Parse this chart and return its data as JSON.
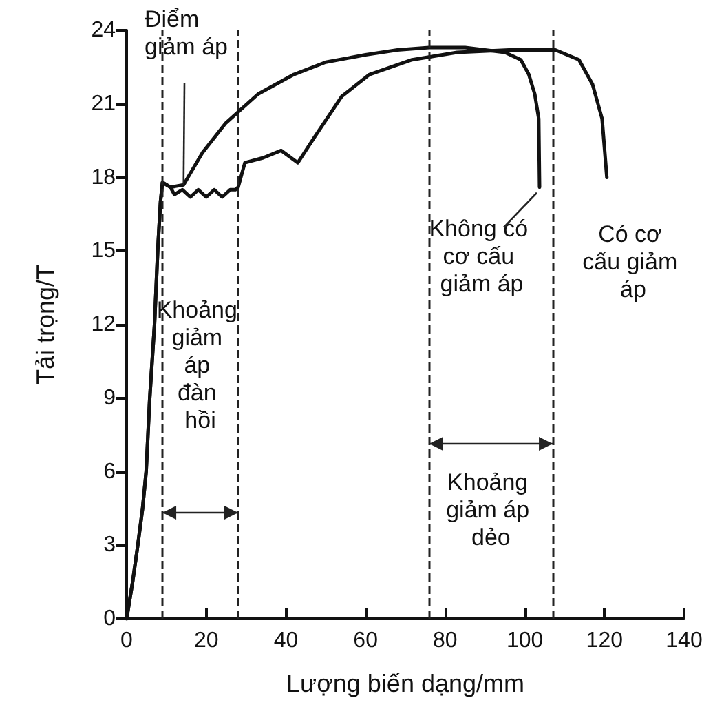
{
  "chart_data": {
    "type": "line",
    "xlabel": "Lượng biến dạng/mm",
    "ylabel": "Tải trọng/T",
    "xlim": [
      0,
      140
    ],
    "xticks": [
      0,
      20,
      40,
      60,
      80,
      100,
      120,
      140
    ],
    "ylim": [
      0,
      24
    ],
    "yticks": [
      0,
      3,
      6,
      9,
      12,
      15,
      18,
      21,
      24
    ],
    "grid": false,
    "legend": false,
    "marker": "none",
    "line_style": "solid",
    "series": [
      {
        "name": "Không có cơ cấu giảm áp",
        "color": "#111111",
        "x": [
          0,
          1.5,
          2.8,
          4,
          4.9,
          5.8,
          7,
          7.8,
          8.5,
          9,
          11,
          14.3,
          19,
          24.8,
          33,
          42,
          50,
          60,
          68,
          76,
          85,
          95,
          99,
          101,
          102.5,
          103.5,
          103.7
        ],
        "values": [
          0,
          1.5,
          3,
          4.5,
          6,
          9,
          12,
          15,
          17,
          17.8,
          17.6,
          17.7,
          19,
          20.2,
          21.4,
          22.2,
          22.7,
          23,
          23.2,
          23.3,
          23.3,
          23.1,
          22.8,
          22.2,
          21.4,
          20.4,
          17.6
        ]
      },
      {
        "name": "Có cơ cấu giảm áp",
        "color": "#111111",
        "x": [
          0,
          1.5,
          2.8,
          4,
          4.9,
          5.8,
          7,
          7.8,
          8.5,
          9,
          11,
          12,
          14,
          16,
          18,
          20,
          22,
          24,
          26,
          27.3,
          28,
          29.7,
          34.3,
          38.8,
          43,
          47,
          54,
          61,
          71.7,
          83,
          96,
          107.7,
          113.6,
          117,
          119.4,
          120.6
        ],
        "values": [
          0,
          1.5,
          3,
          4.5,
          6,
          9,
          12,
          15,
          17,
          17.8,
          17.6,
          17.3,
          17.5,
          17.2,
          17.5,
          17.2,
          17.5,
          17.2,
          17.5,
          17.5,
          17.6,
          18.6,
          18.8,
          19.1,
          18.6,
          19.6,
          21.3,
          22.2,
          22.8,
          23.1,
          23.2,
          23.2,
          22.8,
          21.8,
          20.4,
          18
        ]
      }
    ],
    "ref_lines": [
      {
        "axis": "x",
        "value": 9,
        "line_style": "dashed"
      },
      {
        "axis": "x",
        "value": 28,
        "line_style": "dashed"
      },
      {
        "axis": "x",
        "value": 76,
        "line_style": "dashed"
      },
      {
        "axis": "x",
        "value": 107,
        "line_style": "dashed"
      }
    ],
    "annotations": [
      {
        "text": "Điểm giảm áp",
        "x": 14.3,
        "y": 17.7
      },
      "Khoảng giảm áp đàn hồi",
      "Khoảng giảm áp dẻo"
    ]
  }
}
